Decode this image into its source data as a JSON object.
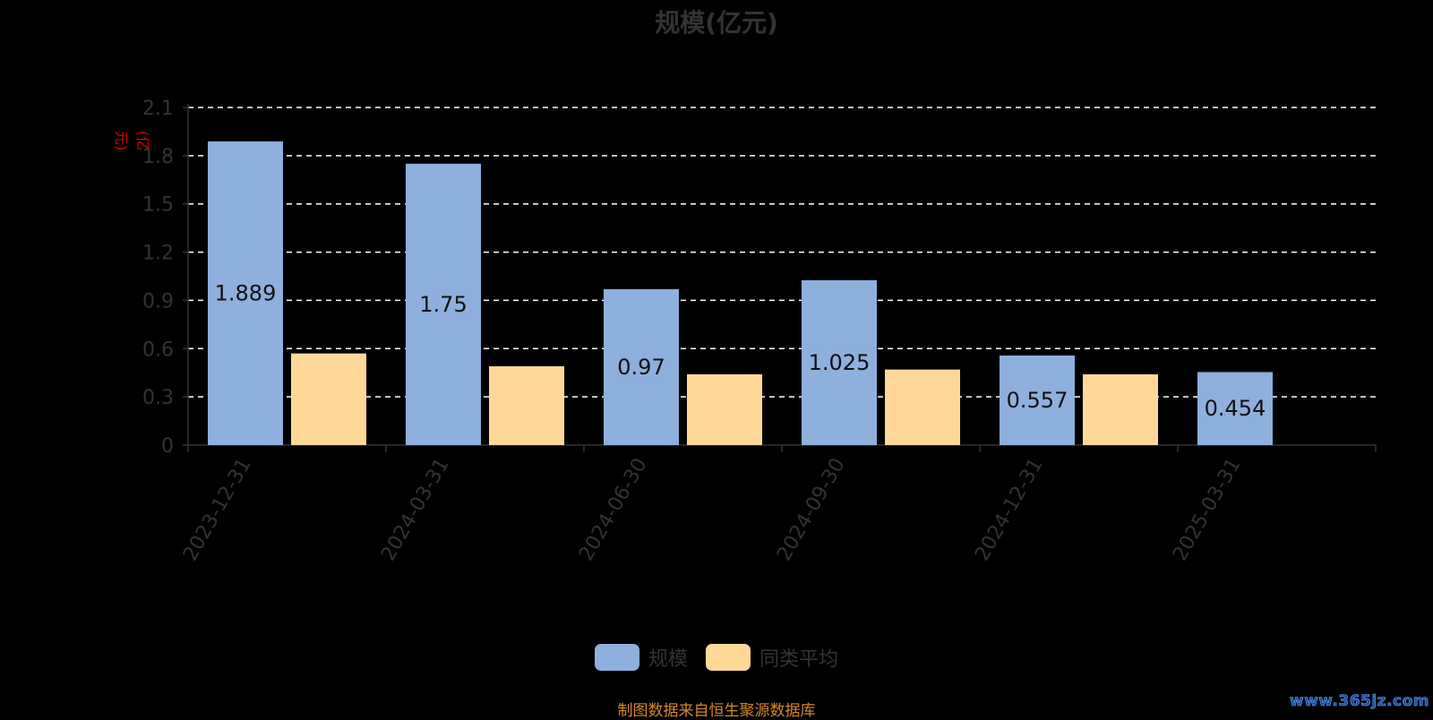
{
  "title": "规模(亿元)",
  "y_unit": "(亿元)",
  "legend": {
    "items": [
      {
        "label": "规模",
        "color": "#8eb0dc"
      },
      {
        "label": "同类平均",
        "color": "#ffd898"
      }
    ]
  },
  "footer_note": "制图数据来自恒生聚源数据库",
  "watermark": "www.365jz.com",
  "chart_data": {
    "type": "bar",
    "title": "规模(亿元)",
    "xlabel": "",
    "ylabel": "(亿元)",
    "categories": [
      "2023-12-31",
      "2024-03-31",
      "2024-06-30",
      "2024-09-30",
      "2024-12-31",
      "2025-03-31"
    ],
    "series": [
      {
        "name": "规模",
        "values": [
          1.889,
          1.75,
          0.97,
          1.025,
          0.557,
          0.454
        ],
        "color": "#8eb0dc",
        "show_labels": true
      },
      {
        "name": "同类平均",
        "values": [
          0.57,
          0.49,
          0.44,
          0.47,
          0.44,
          null
        ],
        "color": "#ffd898",
        "show_labels": false
      }
    ],
    "ylim": [
      0,
      2.1
    ],
    "yticks": [
      "0",
      "0.3",
      "0.6",
      "0.9",
      "1.2",
      "1.5",
      "1.8",
      "2.1"
    ],
    "ytick_values": [
      0,
      0.3,
      0.6,
      0.9,
      1.2,
      1.5,
      1.8,
      2.1
    ],
    "grid": true,
    "grid_style": "dashed",
    "legend_position": "bottom",
    "axis_color": "#333333",
    "tick_label_color": "#333333",
    "grid_color": "#ffffff",
    "data_label_color": "#111111"
  }
}
